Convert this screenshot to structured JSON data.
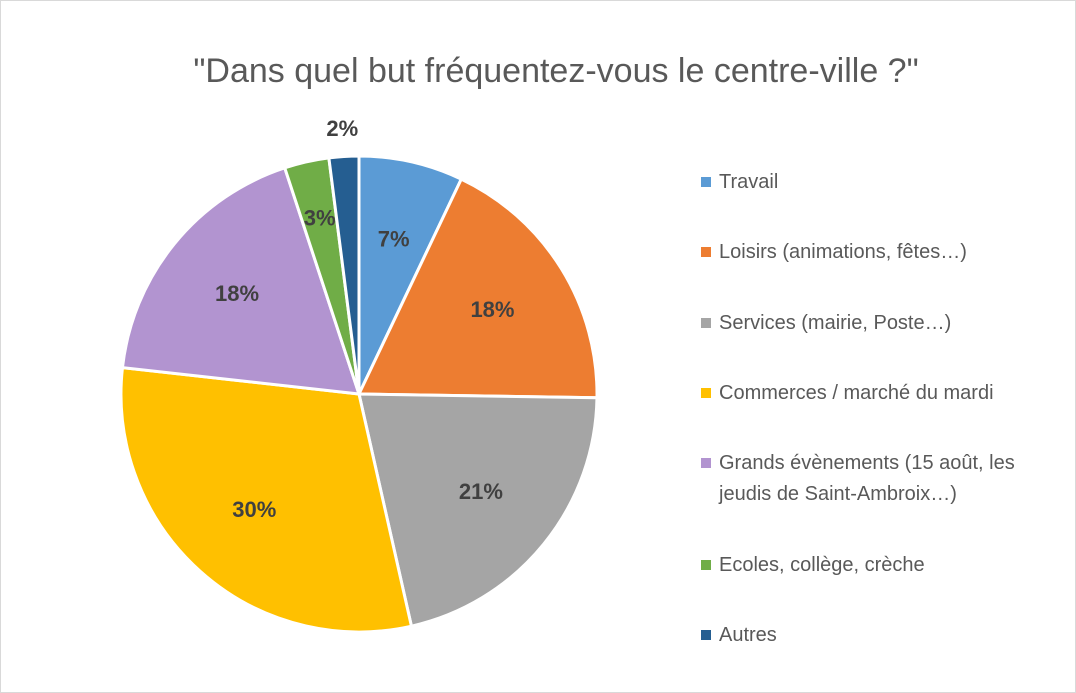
{
  "chart_data": {
    "type": "pie",
    "title": "\"Dans quel but fréquentez-vous le centre-ville ?\"",
    "categories": [
      "Travail",
      "Loisirs (animations, fêtes…)",
      "Services (mairie, Poste…)",
      "Commerces / marché du mardi",
      "Grands évènements (15 août, les jeudis de Saint-Ambroix…)",
      "Ecoles, collège, crèche",
      "Autres"
    ],
    "values": [
      7,
      18,
      21,
      30,
      18,
      3,
      2
    ],
    "value_labels": [
      "7%",
      "18%",
      "21%",
      "30%",
      "18%",
      "3%",
      "2%"
    ],
    "colors": [
      "#5b9bd5",
      "#ed7d31",
      "#a5a5a5",
      "#ffc000",
      "#b294d0",
      "#70ad47",
      "#255e91"
    ],
    "legend": "right"
  }
}
